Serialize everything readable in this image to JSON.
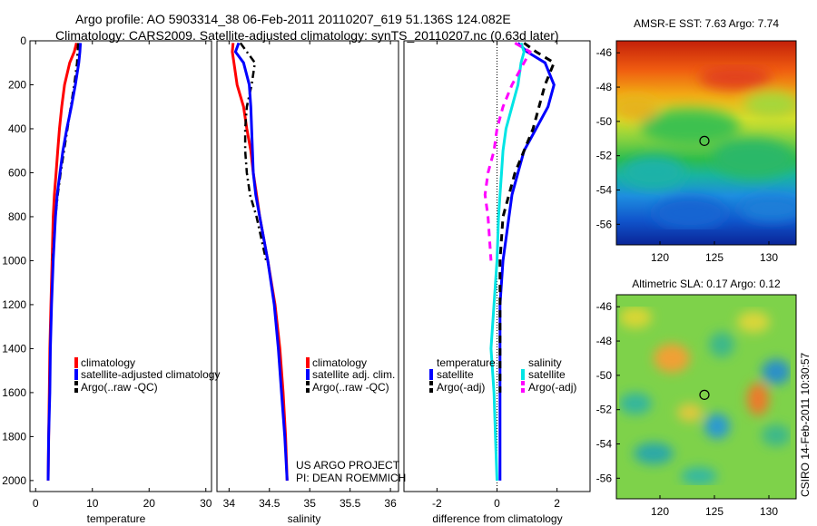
{
  "header": {
    "line1": "Argo profile: AO 5903314_38 06-Feb-2011 20110207_619 51.136S 124.082E",
    "line2": "Climatology: CARS2009. Satellite-adjusted climatology: synTS_20110207.nc (0.63d later)"
  },
  "colors": {
    "climatology": "#ff0000",
    "satellite": "#0000ff",
    "argo": "#000000",
    "sat_salinity": "#00e5e5",
    "argo_salinity": "#ff00ff"
  },
  "chart_data": [
    {
      "type": "line",
      "id": "temperature",
      "xlabel": "temperature",
      "ylabel": "",
      "xlim": [
        -1,
        31
      ],
      "ylim": [
        2050,
        0
      ],
      "xticks": [
        0,
        10,
        20,
        30
      ],
      "yticks": [
        0,
        200,
        400,
        600,
        800,
        1000,
        1200,
        1400,
        1600,
        1800,
        2000
      ],
      "legend": {
        "placement": "lower-center",
        "entries": [
          "climatology",
          "satellite-adjusted climatology",
          "Argo(..raw -QC)"
        ]
      },
      "series": [
        {
          "name": "climatology",
          "y": [
            10,
            50,
            100,
            200,
            300,
            400,
            500,
            600,
            700,
            800,
            1000,
            1200,
            1400,
            1600,
            1800,
            2000
          ],
          "values": [
            7.2,
            6.8,
            6.0,
            5.1,
            4.6,
            4.2,
            3.9,
            3.6,
            3.3,
            3.1,
            2.9,
            2.7,
            2.5,
            2.4,
            2.3,
            2.2
          ]
        },
        {
          "name": "satellite-adjusted climatology",
          "y": [
            10,
            50,
            100,
            200,
            300,
            400,
            500,
            600,
            700,
            800,
            1000,
            1200,
            1400,
            1600,
            1800,
            2000
          ],
          "values": [
            7.9,
            7.8,
            7.6,
            7.0,
            6.3,
            5.5,
            4.8,
            4.3,
            3.8,
            3.5,
            3.1,
            2.8,
            2.6,
            2.5,
            2.3,
            2.2
          ]
        },
        {
          "name": "Argo(..raw -QC)",
          "y": [
            10,
            50,
            100,
            200,
            300,
            400,
            500,
            600,
            700,
            800,
            1000
          ],
          "values": [
            7.5,
            7.4,
            7.3,
            6.8,
            6.2,
            5.6,
            5.0,
            4.4,
            3.9,
            3.5,
            3.0
          ]
        }
      ]
    },
    {
      "type": "line",
      "id": "salinity",
      "xlabel": "salinity",
      "xlim": [
        33.85,
        36.1
      ],
      "ylim": [
        2050,
        0
      ],
      "xticks": [
        34,
        34.5,
        35,
        35.5,
        36
      ],
      "legend": {
        "placement": "lower-center",
        "entries": [
          "climatology",
          "satellite adj. clim.",
          "Argo(..raw -QC)"
        ]
      },
      "annotations": [
        "US ARGO PROJECT",
        "PI: DEAN ROEMMICH"
      ],
      "series": [
        {
          "name": "climatology",
          "y": [
            10,
            50,
            100,
            200,
            300,
            400,
            500,
            600,
            700,
            800,
            1000,
            1200,
            1400,
            1600,
            1800,
            2000
          ],
          "values": [
            34.05,
            34.04,
            34.06,
            34.1,
            34.18,
            34.22,
            34.27,
            34.3,
            34.34,
            34.38,
            34.48,
            34.57,
            34.63,
            34.67,
            34.7,
            34.72
          ]
        },
        {
          "name": "satellite adj. clim.",
          "y": [
            10,
            50,
            100,
            200,
            300,
            400,
            500,
            600,
            700,
            800,
            1000,
            1200,
            1400,
            1600,
            1800,
            2000
          ],
          "values": [
            34.12,
            34.08,
            34.18,
            34.25,
            34.27,
            34.28,
            34.29,
            34.3,
            34.33,
            34.38,
            34.48,
            34.56,
            34.61,
            34.65,
            34.69,
            34.72
          ]
        },
        {
          "name": "Argo(..raw -QC)",
          "y": [
            10,
            50,
            100,
            200,
            300,
            400,
            500,
            600,
            700,
            800,
            1000
          ],
          "values": [
            34.14,
            34.22,
            34.32,
            34.28,
            34.22,
            34.2,
            34.2,
            34.22,
            34.26,
            34.34,
            34.46
          ]
        }
      ]
    },
    {
      "type": "line",
      "id": "difference",
      "xlabel": "difference from climatology",
      "xlim": [
        -3.1,
        3.1
      ],
      "ylim": [
        2050,
        0
      ],
      "xticks": [
        -2,
        0,
        2
      ],
      "reference_line": 0,
      "legend": {
        "placement": "lower-center",
        "entries": [
          "temperature",
          "satellite",
          "Argo(-adj)",
          "salinity",
          "satellite",
          "Argo(-adj)"
        ]
      },
      "series": [
        {
          "name": "temperature satellite",
          "y": [
            10,
            50,
            100,
            200,
            300,
            400,
            500,
            600,
            700,
            800,
            1000,
            1200,
            1400,
            1600,
            1800,
            2000
          ],
          "values": [
            0.7,
            1.0,
            1.6,
            1.9,
            1.7,
            1.3,
            0.9,
            0.7,
            0.5,
            0.4,
            0.2,
            0.1,
            0.1,
            0.1,
            0.1,
            0.1
          ]
        },
        {
          "name": "temperature Argo(-adj)",
          "y": [
            10,
            50,
            100,
            200,
            300,
            400,
            500,
            600,
            700,
            800,
            1000,
            1200,
            1400,
            1600
          ],
          "values": [
            0.9,
            1.3,
            1.9,
            1.6,
            1.4,
            1.2,
            0.9,
            0.6,
            0.4,
            0.2,
            0.1,
            0.1,
            0.1,
            0.1
          ]
        },
        {
          "name": "salinity satellite",
          "y": [
            10,
            50,
            100,
            200,
            300,
            400,
            500,
            600,
            700,
            800,
            1000,
            1200,
            1400,
            1600,
            1800,
            2000
          ],
          "values": [
            0.8,
            0.9,
            0.8,
            0.7,
            0.5,
            0.3,
            0.2,
            0.15,
            0.1,
            0.05,
            0.0,
            -0.1,
            -0.2,
            -0.1,
            -0.05,
            0.0
          ]
        },
        {
          "name": "salinity Argo(-adj)",
          "y": [
            10,
            50,
            100,
            200,
            300,
            400,
            500,
            600,
            700,
            800,
            1000
          ],
          "values": [
            0.6,
            1.1,
            0.9,
            0.5,
            0.2,
            0.0,
            -0.1,
            -0.3,
            -0.4,
            -0.3,
            -0.2
          ]
        }
      ]
    },
    {
      "type": "heatmap",
      "id": "sst-map",
      "title": "AMSR-E SST: 7.63 Argo: 7.74",
      "xlim": [
        116,
        132.5
      ],
      "ylim": [
        -57.2,
        -45.3
      ],
      "xticks": [
        120,
        125,
        130
      ],
      "yticks": [
        -46,
        -48,
        -50,
        -52,
        -54,
        -56
      ],
      "marker": {
        "lon": 124.082,
        "lat": -51.136
      }
    },
    {
      "type": "heatmap",
      "id": "sla-map",
      "title": "Altimetric SLA: 0.17 Argo: 0.12",
      "xlim": [
        116,
        132.5
      ],
      "ylim": [
        -57.2,
        -45.3
      ],
      "xticks": [
        120,
        125,
        130
      ],
      "yticks": [
        -46,
        -48,
        -50,
        -52,
        -54,
        -56
      ],
      "marker": {
        "lon": 124.082,
        "lat": -51.136
      },
      "side_label": "CSIRO 14-Feb-2011 10:30:57"
    }
  ]
}
